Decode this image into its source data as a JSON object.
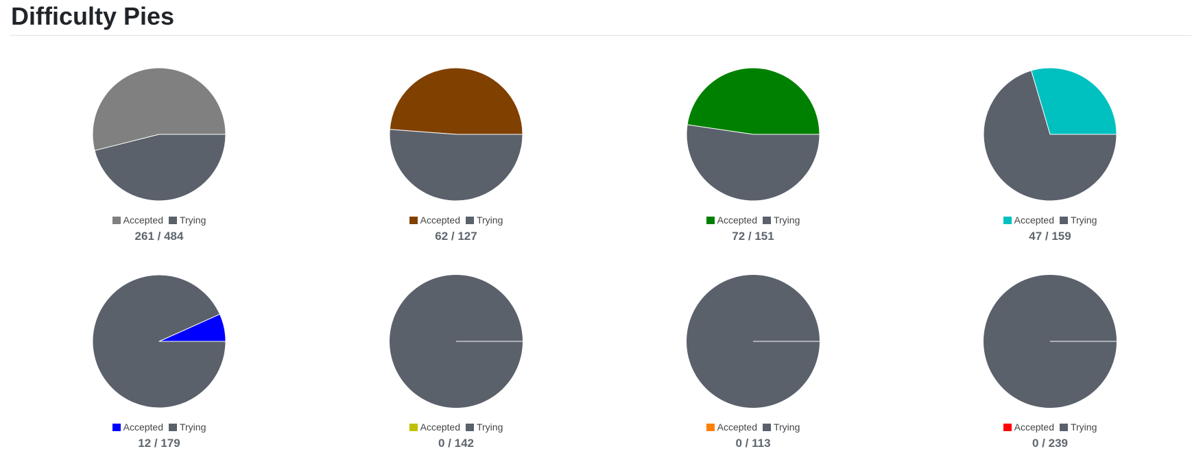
{
  "page": {
    "title": "Difficulty Pies"
  },
  "colors": {
    "trying": "#5a616b",
    "separator": "#ffffff"
  },
  "chart_data": [
    {
      "type": "pie",
      "series": [
        {
          "name": "Accepted",
          "value": 261,
          "color": "#808080"
        },
        {
          "name": "Trying",
          "value": 223,
          "color": "#5a616b"
        }
      ],
      "legend": [
        "Accepted",
        "Trying"
      ],
      "legend_position": "bottom",
      "caption": "261 / 484"
    },
    {
      "type": "pie",
      "series": [
        {
          "name": "Accepted",
          "value": 62,
          "color": "#804000"
        },
        {
          "name": "Trying",
          "value": 65,
          "color": "#5a616b"
        }
      ],
      "legend": [
        "Accepted",
        "Trying"
      ],
      "legend_position": "bottom",
      "caption": "62 / 127"
    },
    {
      "type": "pie",
      "series": [
        {
          "name": "Accepted",
          "value": 72,
          "color": "#008000"
        },
        {
          "name": "Trying",
          "value": 79,
          "color": "#5a616b"
        }
      ],
      "legend": [
        "Accepted",
        "Trying"
      ],
      "legend_position": "bottom",
      "caption": "72 / 151"
    },
    {
      "type": "pie",
      "series": [
        {
          "name": "Accepted",
          "value": 47,
          "color": "#00c0c0"
        },
        {
          "name": "Trying",
          "value": 112,
          "color": "#5a616b"
        }
      ],
      "legend": [
        "Accepted",
        "Trying"
      ],
      "legend_position": "bottom",
      "caption": "47 / 159"
    },
    {
      "type": "pie",
      "series": [
        {
          "name": "Accepted",
          "value": 12,
          "color": "#0000ff"
        },
        {
          "name": "Trying",
          "value": 167,
          "color": "#5a616b"
        }
      ],
      "legend": [
        "Accepted",
        "Trying"
      ],
      "legend_position": "bottom",
      "caption": "12 / 179"
    },
    {
      "type": "pie",
      "series": [
        {
          "name": "Accepted",
          "value": 0,
          "color": "#c0c000"
        },
        {
          "name": "Trying",
          "value": 142,
          "color": "#5a616b"
        }
      ],
      "legend": [
        "Accepted",
        "Trying"
      ],
      "legend_position": "bottom",
      "caption": "0 / 142"
    },
    {
      "type": "pie",
      "series": [
        {
          "name": "Accepted",
          "value": 0,
          "color": "#ff8000"
        },
        {
          "name": "Trying",
          "value": 113,
          "color": "#5a616b"
        }
      ],
      "legend": [
        "Accepted",
        "Trying"
      ],
      "legend_position": "bottom",
      "caption": "0 / 113"
    },
    {
      "type": "pie",
      "series": [
        {
          "name": "Accepted",
          "value": 0,
          "color": "#ff0000"
        },
        {
          "name": "Trying",
          "value": 239,
          "color": "#5a616b"
        }
      ],
      "legend": [
        "Accepted",
        "Trying"
      ],
      "legend_position": "bottom",
      "caption": "0 / 239"
    }
  ]
}
